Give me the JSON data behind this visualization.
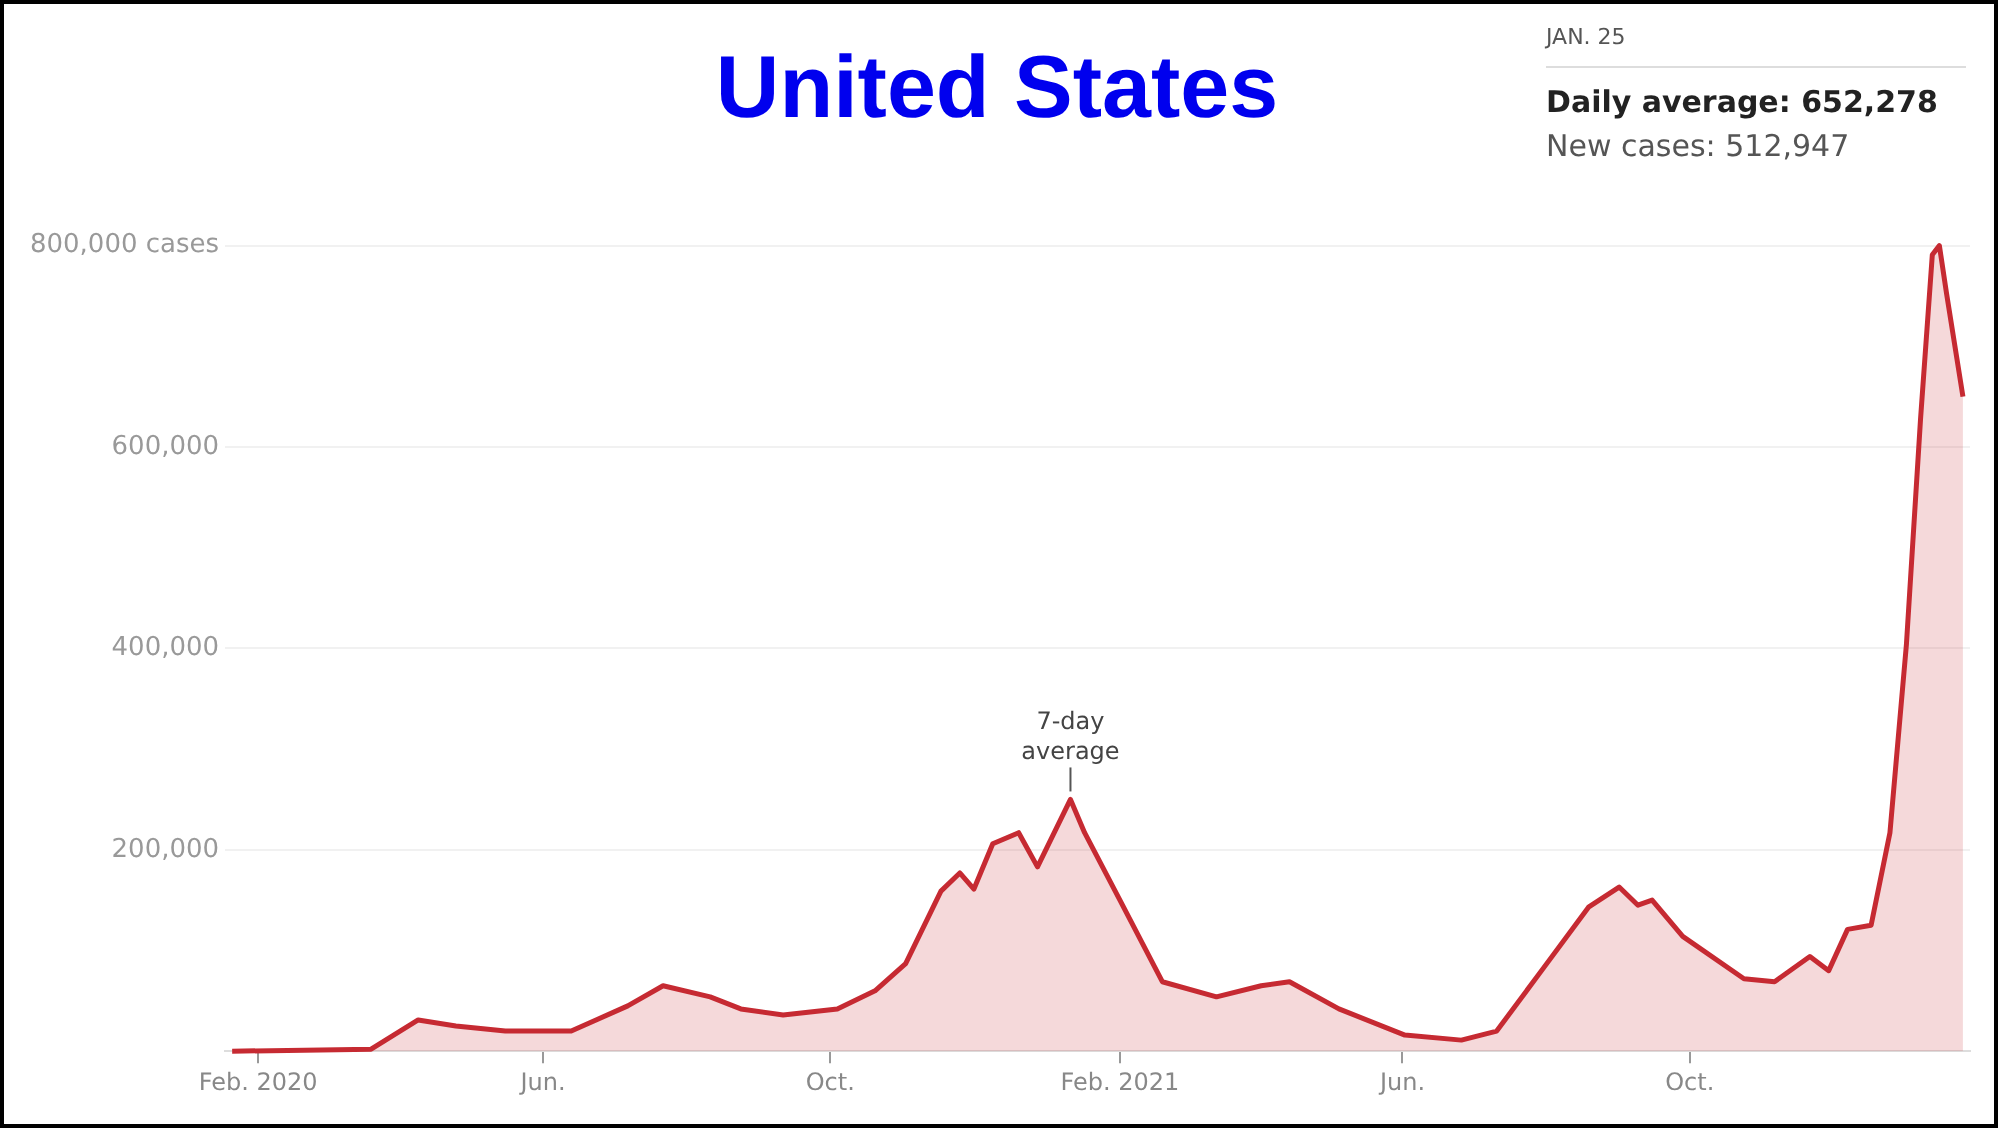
{
  "chart_data": {
    "type": "area",
    "title": "United States",
    "annotations": [
      {
        "text": "7-day average",
        "x": "2021-01-11",
        "y": 250000
      },
      "JAN. 25",
      "Daily average: 652,278",
      "New cases: 512,947"
    ],
    "x": [
      "2020-01-21",
      "2020-03-20",
      "2020-04-09",
      "2020-04-25",
      "2020-05-16",
      "2020-06-13",
      "2020-07-07",
      "2020-07-22",
      "2020-08-11",
      "2020-08-24",
      "2020-09-11",
      "2020-10-04",
      "2020-10-20",
      "2020-11-02",
      "2020-11-17",
      "2020-11-25",
      "2020-12-01",
      "2020-12-09",
      "2020-12-20",
      "2020-12-28",
      "2021-01-11",
      "2021-01-17",
      "2021-02-01",
      "2021-02-19",
      "2021-03-14",
      "2021-04-02",
      "2021-04-14",
      "2021-05-05",
      "2021-06-02",
      "2021-06-26",
      "2021-07-11",
      "2021-07-31",
      "2021-08-19",
      "2021-09-01",
      "2021-09-09",
      "2021-09-15",
      "2021-09-28",
      "2021-10-24",
      "2021-11-06",
      "2021-11-21",
      "2021-11-29",
      "2021-12-07",
      "2021-12-17",
      "2021-12-25",
      "2022-01-01",
      "2022-01-07",
      "2022-01-12",
      "2022-01-15",
      "2022-01-18",
      "2022-01-25"
    ],
    "series": [
      {
        "color": "#c62a32",
        "values": [
          0,
          2000,
          31000,
          25000,
          20000,
          20000,
          45000,
          65000,
          54000,
          42000,
          36000,
          42000,
          60000,
          87000,
          159000,
          177000,
          161000,
          206000,
          217000,
          183000,
          250000,
          217000,
          150000,
          69000,
          54000,
          65000,
          69000,
          42000,
          16000,
          11000,
          20000,
          83000,
          143000,
          163000,
          145000,
          150000,
          114000,
          72000,
          69000,
          94000,
          80000,
          121000,
          125000,
          217000,
          404000,
          628000,
          791000,
          800000,
          753000,
          650000
        ]
      }
    ],
    "xlim": [
      "2020-01-18",
      "2022-01-28"
    ],
    "xticks": [
      {
        "value": "2020-02-01",
        "label": "Feb. 2020"
      },
      {
        "value": "2020-06-01",
        "label": "Jun."
      },
      {
        "value": "2020-10-01",
        "label": "Oct."
      },
      {
        "value": "2021-02-01",
        "label": "Feb. 2021"
      },
      {
        "value": "2021-06-01",
        "label": "Jun."
      },
      {
        "value": "2021-10-01",
        "label": "Oct."
      }
    ],
    "ylim": [
      0,
      800000
    ],
    "yticks": [
      {
        "value": 200000,
        "label": "200,000"
      },
      {
        "value": 400000,
        "label": "400,000"
      },
      {
        "value": 600000,
        "label": "600,000"
      },
      {
        "value": 800000,
        "label": "800,000 cases"
      }
    ],
    "grid": "y",
    "legend": false,
    "marker": "none"
  }
}
